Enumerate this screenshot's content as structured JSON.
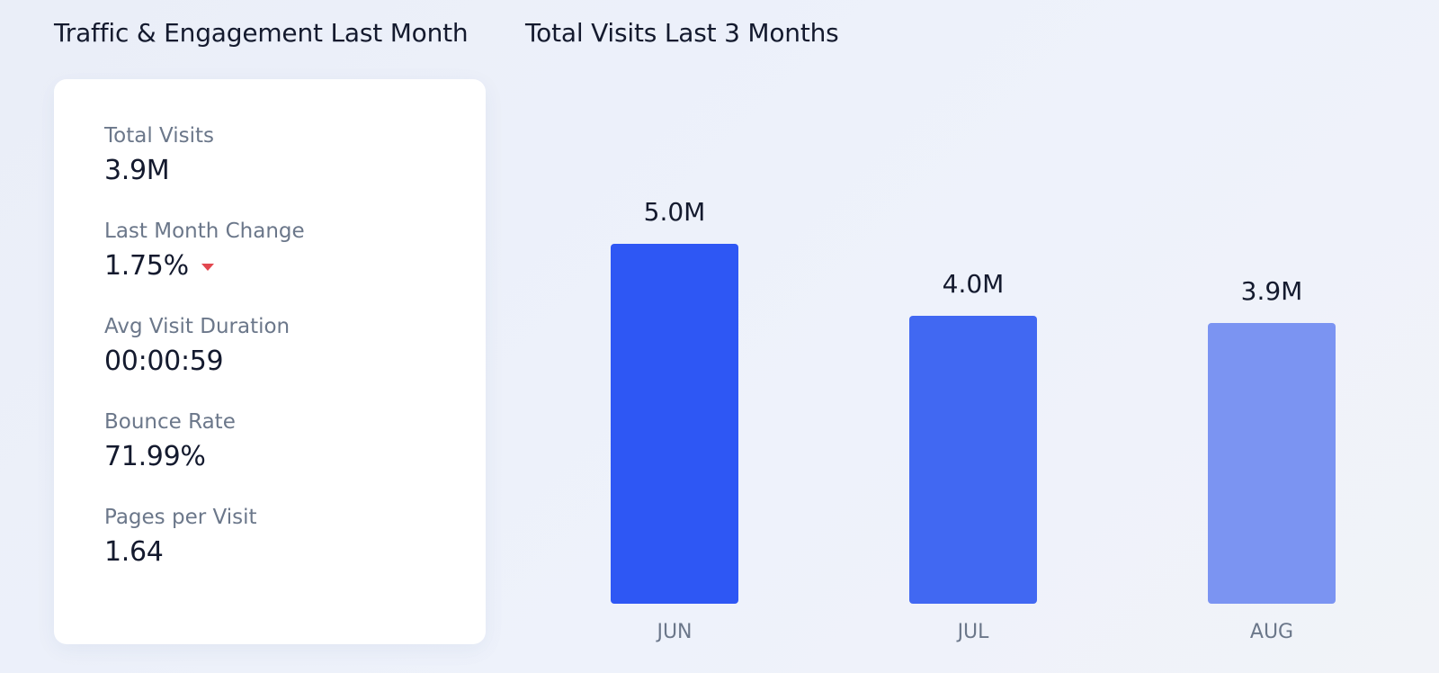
{
  "left_panel": {
    "title": "Traffic & Engagement Last Month",
    "metrics": [
      {
        "label": "Total Visits",
        "value": "3.9M"
      },
      {
        "label": "Last Month Change",
        "value": "1.75%",
        "trend_icon": "triangle-down-icon",
        "trend_color": "#e2474f"
      },
      {
        "label": "Avg Visit Duration",
        "value": "00:00:59"
      },
      {
        "label": "Bounce Rate",
        "value": "71.99%"
      },
      {
        "label": "Pages per Visit",
        "value": "1.64"
      }
    ]
  },
  "chart_data": {
    "type": "bar",
    "title": "Total Visits Last 3 Months",
    "categories": [
      "JUN",
      "JUL",
      "AUG"
    ],
    "values": [
      5.0,
      4.0,
      3.9
    ],
    "value_labels": [
      "5.0M",
      "4.0M",
      "3.9M"
    ],
    "unit": "M",
    "bar_colors": [
      "#2e57f4",
      "#4168f2",
      "#7b94f2"
    ],
    "grid": false,
    "legend": "none"
  }
}
